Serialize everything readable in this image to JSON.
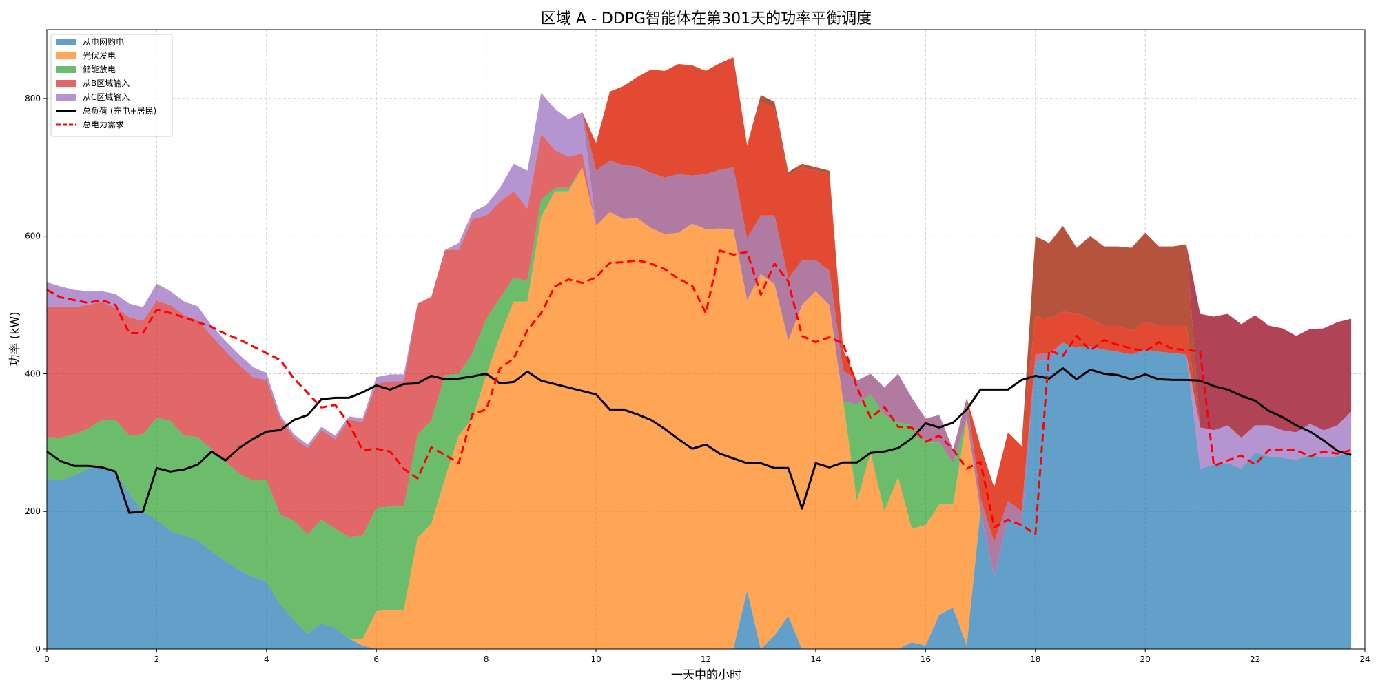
{
  "chart_data": {
    "type": "area",
    "title": "区域 A - DDPG智能体在第301天的功率平衡调度",
    "xlabel": "一天中的小时",
    "ylabel": "功率 (kW)",
    "xlim": [
      0,
      24
    ],
    "ylim": [
      0,
      900
    ],
    "xticks": [
      0,
      2,
      4,
      6,
      8,
      10,
      12,
      14,
      16,
      18,
      20,
      22,
      24
    ],
    "yticks": [
      0,
      200,
      400,
      600,
      800
    ],
    "grid": true,
    "legend_position": "top-left",
    "x": [
      0,
      0.25,
      0.5,
      0.75,
      1,
      1.25,
      1.5,
      1.75,
      2,
      2.25,
      2.5,
      2.75,
      3,
      3.25,
      3.5,
      3.75,
      4,
      4.25,
      4.5,
      4.75,
      5,
      5.25,
      5.5,
      5.75,
      6,
      6.25,
      6.5,
      6.75,
      7,
      7.25,
      7.5,
      7.75,
      8,
      8.25,
      8.5,
      8.75,
      9,
      9.25,
      9.5,
      9.75,
      10,
      10.25,
      10.5,
      10.75,
      11,
      11.25,
      11.5,
      11.75,
      12,
      12.25,
      12.5,
      12.75,
      13,
      13.25,
      13.5,
      13.75,
      14,
      14.25,
      14.5,
      14.75,
      15,
      15.25,
      15.5,
      15.75,
      16,
      16.25,
      16.5,
      16.75,
      17,
      17.25,
      17.5,
      17.75,
      18,
      18.25,
      18.5,
      18.75,
      19,
      19.25,
      19.5,
      19.75,
      20,
      20.25,
      20.5,
      20.75,
      21,
      21.25,
      21.5,
      21.75,
      22,
      22.25,
      22.5,
      22.75,
      23,
      23.25,
      23.5,
      23.75
    ],
    "series": [
      {
        "name": "从电网购电",
        "color": "#1f77b4",
        "values": [
          248,
          245,
          252,
          262,
          265,
          258,
          225,
          200,
          188,
          172,
          165,
          158,
          142,
          128,
          115,
          105,
          98,
          65,
          42,
          22,
          38,
          30,
          15,
          5,
          0,
          0,
          0,
          0,
          0,
          0,
          0,
          0,
          0,
          0,
          0,
          0,
          0,
          0,
          0,
          0,
          0,
          0,
          0,
          0,
          0,
          0,
          0,
          0,
          0,
          0,
          0,
          85,
          0,
          20,
          48,
          0,
          0,
          0,
          0,
          0,
          0,
          0,
          0,
          10,
          5,
          50,
          60,
          5,
          200,
          105,
          190,
          180,
          418,
          420,
          445,
          438,
          440,
          435,
          432,
          428,
          435,
          432,
          430,
          428,
          262,
          268,
          270,
          262,
          285,
          280,
          278,
          275,
          282,
          278,
          280,
          285
        ]
      },
      {
        "name": "光伏发电",
        "color": "#ff7f0e",
        "values": [
          0,
          0,
          0,
          0,
          0,
          0,
          0,
          0,
          0,
          0,
          0,
          0,
          0,
          0,
          0,
          0,
          0,
          0,
          0,
          0,
          0,
          0,
          0,
          10,
          55,
          57,
          57,
          162,
          182,
          248,
          310,
          335,
          398,
          455,
          505,
          505,
          628,
          665,
          665,
          700,
          615,
          635,
          625,
          626,
          612,
          603,
          605,
          618,
          610,
          611,
          610,
          422,
          545,
          510,
          400,
          500,
          520,
          500,
          360,
          215,
          285,
          200,
          250,
          165,
          175,
          160,
          150,
          330,
          0,
          0,
          0,
          0,
          0,
          0,
          0,
          0,
          0,
          0,
          0,
          0,
          0,
          0,
          0,
          0,
          0,
          0,
          0,
          0,
          0,
          0,
          0,
          0,
          0,
          0,
          0,
          0
        ]
      },
      {
        "name": "储能放电",
        "color": "#2ca02c",
        "values": [
          60,
          62,
          60,
          58,
          68,
          75,
          85,
          112,
          148,
          160,
          145,
          150,
          148,
          145,
          140,
          140,
          148,
          130,
          145,
          145,
          150,
          145,
          148,
          150,
          150,
          150,
          150,
          150,
          150,
          150,
          90,
          95,
          82,
          55,
          35,
          30,
          25,
          5,
          5,
          0,
          0,
          0,
          0,
          0,
          0,
          0,
          0,
          0,
          0,
          0,
          0,
          0,
          0,
          0,
          0,
          0,
          0,
          0,
          0,
          140,
          85,
          140,
          80,
          150,
          120,
          90,
          60,
          0,
          0,
          0,
          0,
          0,
          0,
          0,
          0,
          0,
          0,
          0,
          0,
          0,
          0,
          0,
          0,
          0,
          0,
          0,
          0,
          0,
          0,
          0,
          0,
          0,
          0,
          0,
          0,
          0
        ]
      },
      {
        "name": "从B区域输入",
        "color": "#d62728",
        "values": [
          190,
          190,
          185,
          180,
          172,
          163,
          172,
          165,
          170,
          168,
          175,
          170,
          165,
          160,
          158,
          150,
          145,
          140,
          120,
          125,
          130,
          130,
          170,
          165,
          180,
          182,
          182,
          190,
          180,
          182,
          180,
          195,
          150,
          140,
          125,
          105,
          95,
          55,
          45,
          20,
          0,
          0,
          0,
          0,
          0,
          0,
          0,
          0,
          0,
          0,
          0,
          0,
          0,
          0,
          0,
          0,
          0,
          0,
          0,
          0,
          0,
          0,
          0,
          0,
          0,
          0,
          0,
          0,
          0,
          0,
          0,
          0,
          0,
          0,
          0,
          0,
          0,
          0,
          0,
          0,
          0,
          0,
          0,
          0,
          0,
          0,
          0,
          0,
          0,
          0,
          0,
          0,
          0,
          0,
          0,
          0
        ]
      },
      {
        "name": "从C区域输入",
        "color": "#9467bd",
        "values": [
          35,
          30,
          25,
          20,
          15,
          20,
          20,
          20,
          25,
          20,
          20,
          20,
          15,
          15,
          15,
          15,
          10,
          5,
          5,
          5,
          5,
          5,
          5,
          5,
          10,
          10,
          10,
          0,
          0,
          0,
          10,
          10,
          15,
          20,
          40,
          55,
          60,
          60,
          55,
          60,
          0,
          0,
          0,
          0,
          0,
          0,
          0,
          0,
          0,
          0,
          0,
          0,
          0,
          0,
          0,
          0,
          0,
          0,
          0,
          0,
          0,
          0,
          0,
          0,
          0,
          0,
          0,
          0,
          0,
          0,
          0,
          0,
          0,
          0,
          0,
          0,
          0,
          0,
          0,
          0,
          0,
          0,
          0,
          0,
          60,
          50,
          55,
          45,
          40,
          45,
          40,
          40,
          45,
          40,
          45,
          60
        ]
      }
    ],
    "overlay_series": [
      {
        "color": "#b07aa1",
        "values": [
          0,
          0,
          0,
          0,
          0,
          0,
          0,
          0,
          0,
          0,
          0,
          0,
          0,
          0,
          0,
          0,
          0,
          0,
          0,
          0,
          0,
          0,
          0,
          0,
          0,
          0,
          0,
          0,
          0,
          0,
          0,
          0,
          0,
          0,
          0,
          0,
          0,
          0,
          0,
          0,
          80,
          75,
          78,
          75,
          80,
          82,
          85,
          70,
          80,
          85,
          90,
          90,
          85,
          100,
          90,
          65,
          45,
          50,
          45,
          35,
          30,
          40,
          70,
          40,
          35,
          40,
          20,
          30,
          20,
          50,
          25,
          20,
          10,
          10,
          0,
          0,
          0,
          0,
          0,
          0,
          0,
          0,
          0,
          0,
          0,
          0,
          0,
          0,
          0,
          0,
          0,
          0,
          0,
          0,
          0,
          0
        ]
      },
      {
        "color": "#e24a33",
        "values": [
          0,
          0,
          0,
          0,
          0,
          0,
          0,
          0,
          0,
          0,
          0,
          0,
          0,
          0,
          0,
          0,
          0,
          0,
          0,
          0,
          0,
          0,
          0,
          0,
          0,
          0,
          0,
          0,
          0,
          0,
          0,
          0,
          0,
          0,
          0,
          0,
          0,
          0,
          0,
          0,
          40,
          100,
          115,
          130,
          150,
          155,
          160,
          160,
          150,
          155,
          160,
          135,
          165,
          155,
          150,
          135,
          130,
          140,
          30,
          0,
          0,
          0,
          0,
          0,
          0,
          0,
          0,
          0,
          75,
          80,
          100,
          95,
          55,
          50,
          45,
          50,
          40,
          35,
          38,
          35,
          40,
          38,
          40,
          42,
          0,
          0,
          0,
          0,
          0,
          0,
          0,
          0,
          0,
          0,
          0,
          0
        ]
      },
      {
        "color": "#b5533c",
        "values": [
          0,
          0,
          0,
          0,
          0,
          0,
          0,
          0,
          0,
          0,
          0,
          0,
          0,
          0,
          0,
          0,
          0,
          0,
          0,
          0,
          0,
          0,
          0,
          0,
          0,
          0,
          0,
          0,
          0,
          0,
          0,
          0,
          0,
          0,
          0,
          0,
          0,
          0,
          0,
          0,
          0,
          0,
          0,
          0,
          0,
          0,
          0,
          0,
          0,
          0,
          0,
          0,
          10,
          10,
          5,
          5,
          5,
          5,
          0,
          0,
          0,
          0,
          0,
          0,
          0,
          0,
          0,
          0,
          0,
          0,
          0,
          0,
          117,
          110,
          125,
          95,
          120,
          115,
          115,
          120,
          130,
          115,
          115,
          118,
          0,
          0,
          0,
          0,
          0,
          0,
          0,
          0,
          0,
          0,
          0,
          0
        ]
      },
      {
        "color": "#b04355",
        "values": [
          0,
          0,
          0,
          0,
          0,
          0,
          0,
          0,
          0,
          0,
          0,
          0,
          0,
          0,
          0,
          0,
          0,
          0,
          0,
          0,
          0,
          0,
          0,
          0,
          0,
          0,
          0,
          0,
          0,
          0,
          0,
          0,
          0,
          0,
          0,
          0,
          0,
          0,
          0,
          0,
          0,
          0,
          0,
          0,
          0,
          0,
          0,
          0,
          0,
          0,
          0,
          0,
          0,
          0,
          0,
          0,
          0,
          0,
          0,
          0,
          0,
          0,
          0,
          0,
          0,
          0,
          0,
          0,
          0,
          0,
          0,
          0,
          0,
          0,
          0,
          0,
          0,
          0,
          0,
          0,
          0,
          0,
          0,
          0,
          165,
          165,
          162,
          165,
          160,
          145,
          148,
          140,
          138,
          148,
          150,
          135
        ]
      }
    ],
    "lines": [
      {
        "name": "总负荷 (充电+居民)",
        "color": "#000000",
        "style": "solid",
        "values": [
          287,
          273,
          266,
          266,
          264,
          258,
          198,
          200,
          263,
          258,
          261,
          268,
          287,
          274,
          292,
          305,
          316,
          318,
          333,
          340,
          363,
          365,
          365,
          373,
          383,
          377,
          385,
          386,
          397,
          392,
          393,
          396,
          400,
          386,
          388,
          403,
          390,
          385,
          380,
          375,
          370,
          348,
          348,
          341,
          333,
          320,
          305,
          291,
          297,
          284,
          277,
          270,
          270,
          263,
          263,
          204,
          270,
          264,
          271,
          271,
          285,
          287,
          292,
          306,
          328,
          322,
          329,
          348,
          377,
          377,
          377,
          391,
          397,
          393,
          408,
          392,
          406,
          400,
          398,
          392,
          399,
          392,
          391,
          391,
          390,
          382,
          377,
          368,
          361,
          346,
          337,
          325,
          316,
          303,
          288,
          282
        ]
      },
      {
        "name": "总电力需求",
        "color": "#ff0000",
        "style": "dashed",
        "values": [
          522,
          511,
          507,
          503,
          507,
          500,
          459,
          459,
          493,
          488,
          482,
          475,
          468,
          458,
          450,
          440,
          430,
          420,
          393,
          372,
          351,
          355,
          327,
          289,
          291,
          287,
          262,
          248,
          293,
          282,
          270,
          341,
          348,
          408,
          422,
          463,
          488,
          527,
          537,
          532,
          540,
          561,
          562,
          565,
          560,
          552,
          538,
          528,
          488,
          579,
          573,
          577,
          515,
          560,
          534,
          455,
          446,
          453,
          444,
          380,
          336,
          352,
          323,
          322,
          301,
          310,
          290,
          262,
          272,
          177,
          188,
          180,
          167,
          434,
          426,
          455,
          434,
          449,
          442,
          437,
          433,
          446,
          436,
          435,
          432,
          266,
          274,
          281,
          268,
          289,
          290,
          289,
          280,
          287,
          284,
          289
        ]
      }
    ],
    "legend": [
      "从电网购电",
      "光伏发电",
      "储能放电",
      "从B区域输入",
      "从C区域输入",
      "总负荷 (充电+居民)",
      "总电力需求"
    ]
  }
}
